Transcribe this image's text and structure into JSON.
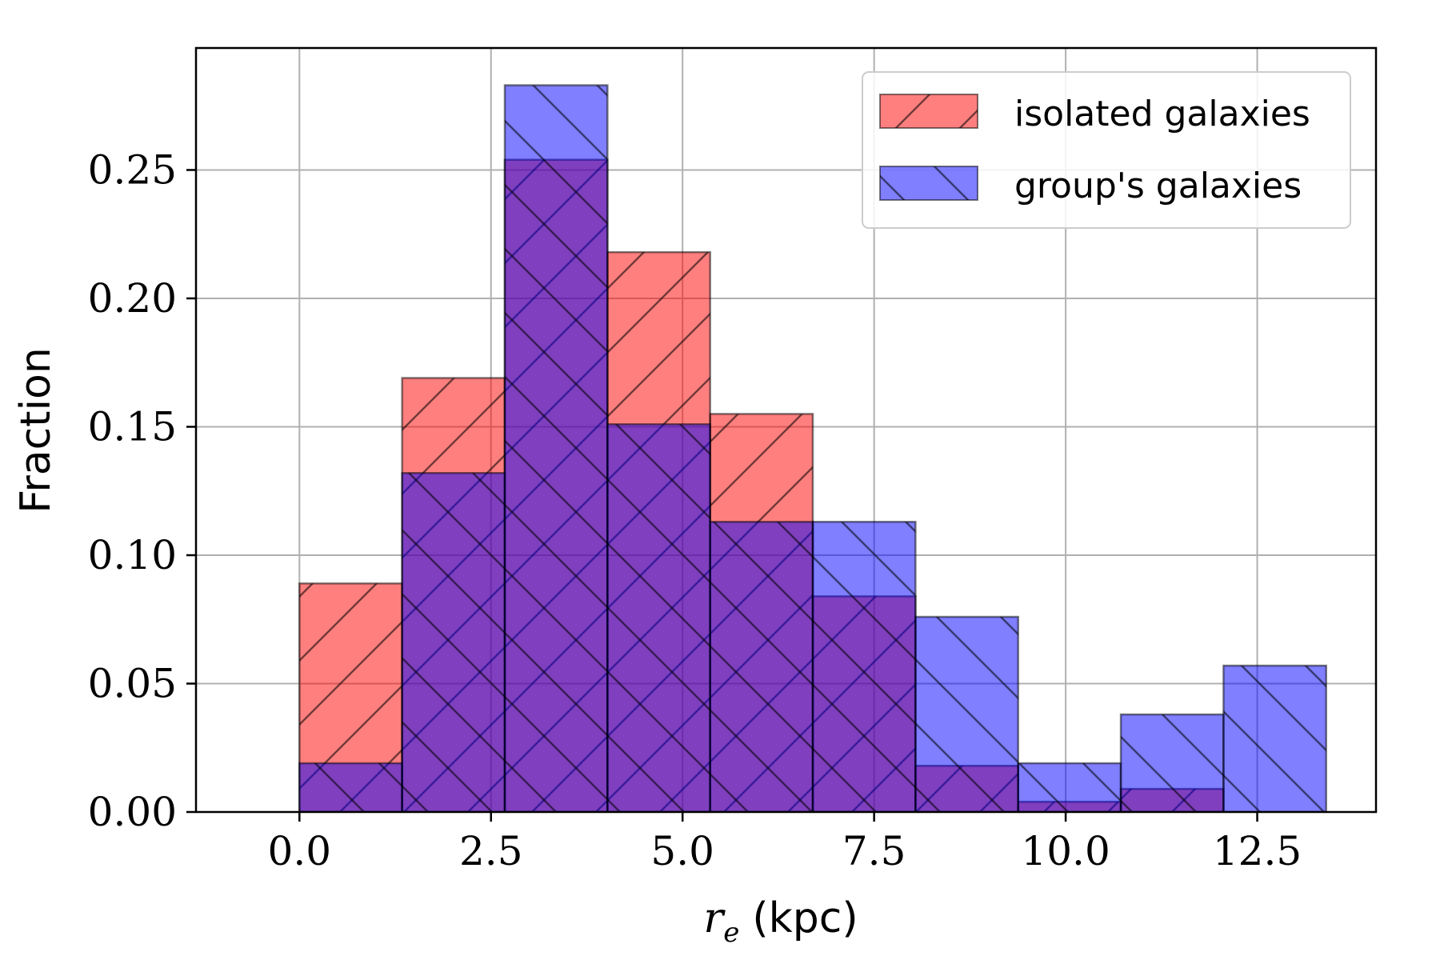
{
  "chart_data": {
    "type": "histogram",
    "xlabel_symbol": "r",
    "xlabel_subscript": "e",
    "xlabel_unit": "(kpc)",
    "ylabel": "Fraction",
    "xlim": [
      -1.35,
      14.05
    ],
    "ylim": [
      0,
      0.2975
    ],
    "xticks": [
      0.0,
      2.5,
      5.0,
      7.5,
      10.0,
      12.5
    ],
    "xtick_labels": [
      "0.0",
      "2.5",
      "5.0",
      "7.5",
      "10.0",
      "12.5"
    ],
    "yticks": [
      0.0,
      0.05,
      0.1,
      0.15,
      0.2,
      0.25
    ],
    "ytick_labels": [
      "0.00",
      "0.05",
      "0.10",
      "0.15",
      "0.20",
      "0.25"
    ],
    "grid": true,
    "legend_position": "top-right",
    "bin_edges": [
      0.0,
      1.34,
      2.68,
      4.02,
      5.36,
      6.7,
      8.04,
      9.38,
      10.72,
      12.06,
      13.4
    ],
    "series": [
      {
        "name": "isolated galaxies",
        "color": "#ff0000",
        "alpha": 0.5,
        "hatch": "forward",
        "values": [
          0.089,
          0.169,
          0.254,
          0.218,
          0.155,
          0.084,
          0.018,
          0.004,
          0.009,
          0.0
        ]
      },
      {
        "name": "group's galaxies",
        "color": "#0000ff",
        "alpha": 0.5,
        "hatch": "backward",
        "values": [
          0.019,
          0.132,
          0.283,
          0.151,
          0.113,
          0.113,
          0.076,
          0.019,
          0.038,
          0.057
        ]
      }
    ]
  }
}
